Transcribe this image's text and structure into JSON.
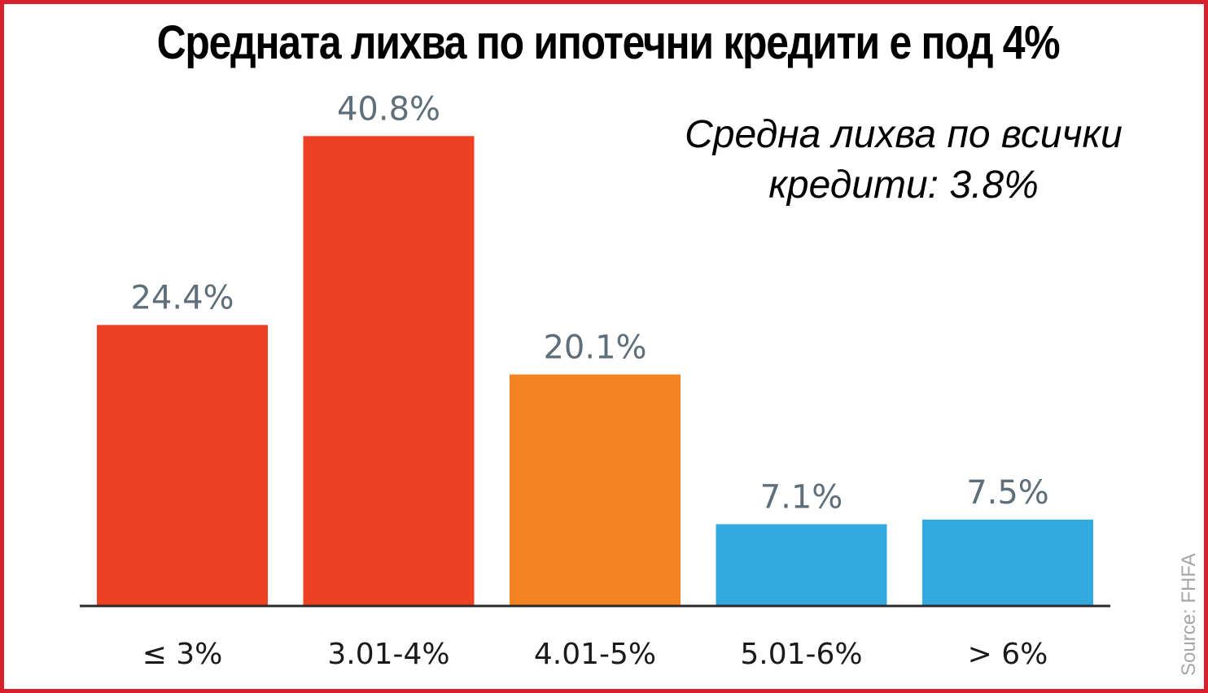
{
  "chart_data": {
    "type": "bar",
    "title": "Средната лихва по ипотечни кредити е под 4%",
    "annotation_lines": [
      "Средна лихва по всички",
      "кредити: 3.8%"
    ],
    "source": "Source: FHFA",
    "categories": [
      "≤ 3%",
      "3.01-4%",
      "4.01-5%",
      "5.01-6%",
      "> 6%"
    ],
    "values": [
      24.4,
      40.8,
      20.1,
      7.1,
      7.5
    ],
    "value_labels": [
      "24.4%",
      "40.8%",
      "20.1%",
      "7.1%",
      "7.5%"
    ],
    "colors": [
      "#ee4023",
      "#ee4023",
      "#f38421",
      "#34a9df",
      "#34a9df"
    ],
    "ylim": [
      0,
      45
    ],
    "grid": false,
    "legend": "none"
  },
  "colors": {
    "border": "#d8202c",
    "value_label": "#5f6f7a",
    "source_text": "#a6a6a6"
  }
}
